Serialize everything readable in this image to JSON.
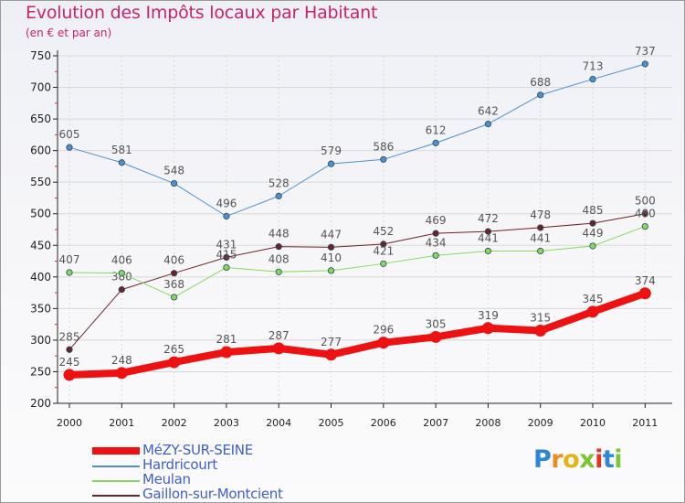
{
  "header": {
    "title": "Evolution des Impôts locaux par Habitant",
    "subtitle": "(en € et par an)"
  },
  "brand": {
    "letters": [
      "P",
      "r",
      "o",
      "x",
      "i",
      "t",
      "i"
    ]
  },
  "colors": {
    "title": "#c8246b",
    "legend_text": "#4060c8",
    "axis": "#222222",
    "grid": "#d8d8d8"
  },
  "chart_data": {
    "type": "line",
    "x": [
      "2000",
      "2001",
      "2002",
      "2003",
      "2004",
      "2005",
      "2006",
      "2007",
      "2008",
      "2009",
      "2010",
      "2011"
    ],
    "ylim": [
      200,
      750
    ],
    "yticks": [
      200,
      250,
      300,
      350,
      400,
      450,
      500,
      550,
      600,
      650,
      700,
      750
    ],
    "grid": true,
    "legend_position": "bottom-left",
    "series": [
      {
        "name": "MéZY-SUR-SEINE",
        "color": "#ee1111",
        "width": 8,
        "values": [
          245,
          248,
          265,
          281,
          287,
          277,
          296,
          305,
          319,
          315,
          345,
          374
        ]
      },
      {
        "name": "Hardricourt",
        "color": "#4f8fcc",
        "width": 1,
        "values": [
          605,
          581,
          548,
          496,
          528,
          579,
          586,
          612,
          642,
          688,
          713,
          737
        ]
      },
      {
        "name": "Meulan",
        "color": "#88d860",
        "width": 1,
        "values": [
          407,
          406,
          368,
          415,
          408,
          410,
          421,
          434,
          441,
          441,
          449,
          480
        ]
      },
      {
        "name": "Gaillon-sur-Montcient",
        "color": "#6e2228",
        "width": 1,
        "values": [
          285,
          380,
          406,
          431,
          448,
          447,
          452,
          469,
          472,
          478,
          485,
          500
        ]
      }
    ]
  }
}
